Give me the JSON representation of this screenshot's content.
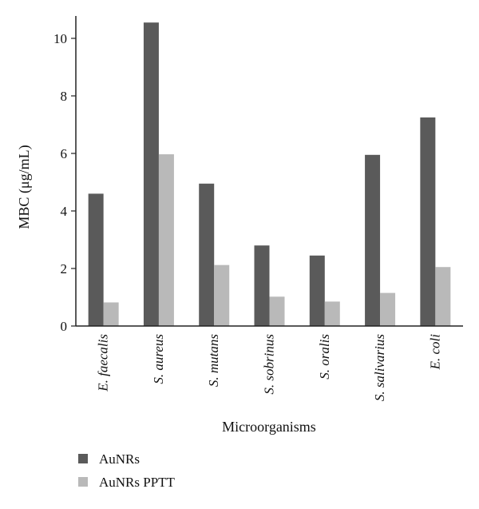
{
  "chart_data": {
    "type": "bar",
    "ylabel": "MBC (μg/mL)",
    "xlabel": "Microorganisms",
    "ylim": [
      0,
      10.8
    ],
    "yticks": [
      0,
      2,
      4,
      6,
      8,
      10
    ],
    "categories": [
      "E. faecalis",
      "S. aureus",
      "S. mutans",
      "S. sobrinus",
      "S. oralis",
      "S. salivarius",
      "E. coli"
    ],
    "series": [
      {
        "name": "AuNRs",
        "color": "#5a5a5a",
        "values": [
          4.6,
          10.55,
          4.95,
          2.8,
          2.45,
          5.95,
          7.25
        ]
      },
      {
        "name": "AuNRs PPTT",
        "color": "#b9b9b9",
        "values": [
          0.82,
          5.97,
          2.12,
          1.02,
          0.85,
          1.15,
          2.05
        ]
      }
    ],
    "legend_position": "bottom-left",
    "grid": false
  }
}
